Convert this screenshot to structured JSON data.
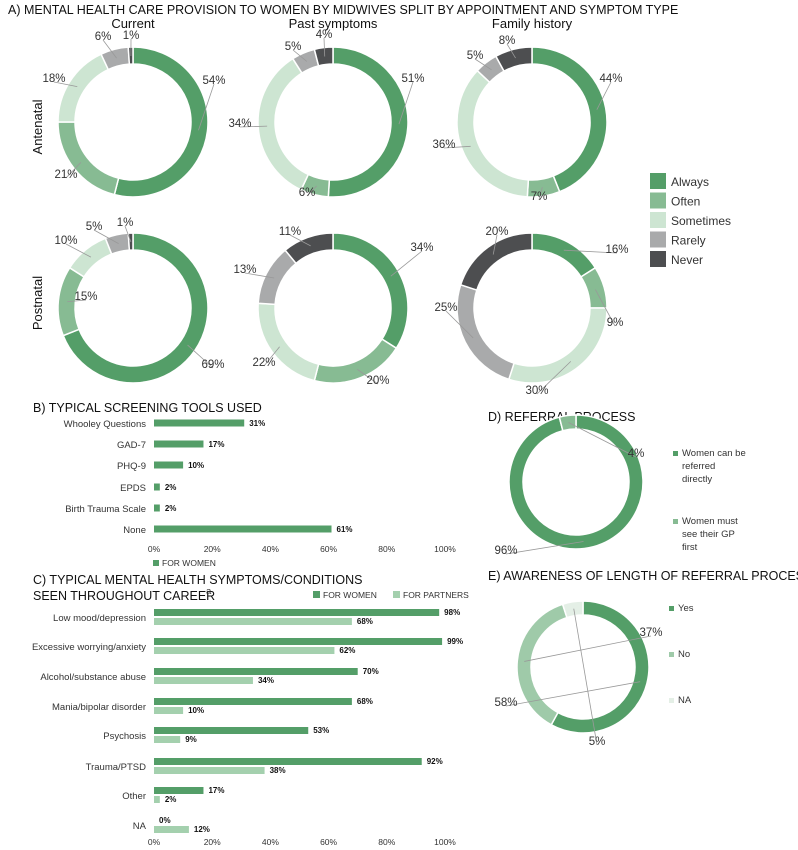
{
  "colors": {
    "always": "#549e68",
    "often": "#87bb93",
    "sometimes": "#cde5d2",
    "rarely": "#a9aaab",
    "never": "#4d4e50",
    "yes": "#549e68",
    "no": "#9fcaa9",
    "na": "#e4efe6",
    "women": "#549e68",
    "partners": "#a4d0ae"
  },
  "chart_data": [
    {
      "type": "pie",
      "title": "A) MENTAL HEALTH CARE PROVISION TO WOMEN BY MIDWIVES SPLIT BY APPOINTMENT AND SYMPTOM TYPE",
      "column_labels": [
        "Current",
        "Past symptoms",
        "Family history"
      ],
      "row_labels": [
        "Antenatal",
        "Postnatal"
      ],
      "legend": [
        "Always",
        "Often",
        "Sometimes",
        "Rarely",
        "Never"
      ],
      "legend_placement": "right",
      "donuts": [
        {
          "row": "Antenatal",
          "column": "Current",
          "values": [
            54,
            21,
            18,
            6,
            1
          ]
        },
        {
          "row": "Antenatal",
          "column": "Past symptoms",
          "values": [
            51,
            6,
            34,
            5,
            4
          ]
        },
        {
          "row": "Antenatal",
          "column": "Family history",
          "values": [
            44,
            7,
            36,
            5,
            8
          ]
        },
        {
          "row": "Postnatal",
          "column": "Current",
          "values": [
            69,
            15,
            10,
            5,
            1
          ]
        },
        {
          "row": "Postnatal",
          "column": "Past symptoms",
          "values": [
            34,
            20,
            22,
            13,
            11
          ]
        },
        {
          "row": "Postnatal",
          "column": "Family history",
          "values": [
            16,
            9,
            30,
            25,
            20
          ]
        }
      ]
    },
    {
      "type": "bar",
      "title": "B) TYPICAL SCREENING TOOLS USED",
      "categories": [
        "Whooley Questions",
        "GAD-7",
        "PHQ-9",
        "EPDS",
        "Birth Trauma Scale",
        "None"
      ],
      "series": [
        {
          "name": "FOR WOMEN",
          "values": [
            31,
            17,
            10,
            2,
            2,
            61
          ]
        }
      ],
      "xlim": [
        0,
        100
      ],
      "ticks": [
        "0%",
        "20%",
        "40%",
        "60%",
        "80%",
        "100%"
      ]
    },
    {
      "type": "bar",
      "title": "C) TYPICAL MENTAL HEALTH SYMPTOMS/CONDITIONS",
      "title_line2": "SEEN THROUGHOUT CAREER",
      "title_sup": "a",
      "categories": [
        "Low mood/depression",
        "Excessive worrying/anxiety",
        "Alcohol/substance abuse",
        "Mania/bipolar disorder",
        "Psychosis",
        "Trauma/PTSD",
        "Other",
        "NA"
      ],
      "series": [
        {
          "name": "FOR WOMEN",
          "values": [
            98,
            99,
            70,
            68,
            53,
            92,
            17,
            0
          ]
        },
        {
          "name": "FOR PARTNERS",
          "values": [
            68,
            62,
            34,
            10,
            9,
            38,
            2,
            12
          ]
        }
      ],
      "xlim": [
        0,
        100
      ],
      "ticks": [
        "0%",
        "20%",
        "40%",
        "60%",
        "80%",
        "100%"
      ]
    },
    {
      "type": "pie",
      "title": "D) REFERRAL PROCESS",
      "legend": [
        [
          "Women can be",
          "referred",
          "directly"
        ],
        [
          "Women must",
          "see their GP",
          "first"
        ]
      ],
      "values": [
        96,
        4
      ]
    },
    {
      "type": "pie",
      "title": "E) AWARENESS OF LENGTH OF REFERRAL PROCESS",
      "legend": [
        "Yes",
        "No",
        "NA"
      ],
      "values": [
        58,
        37,
        5
      ]
    }
  ]
}
